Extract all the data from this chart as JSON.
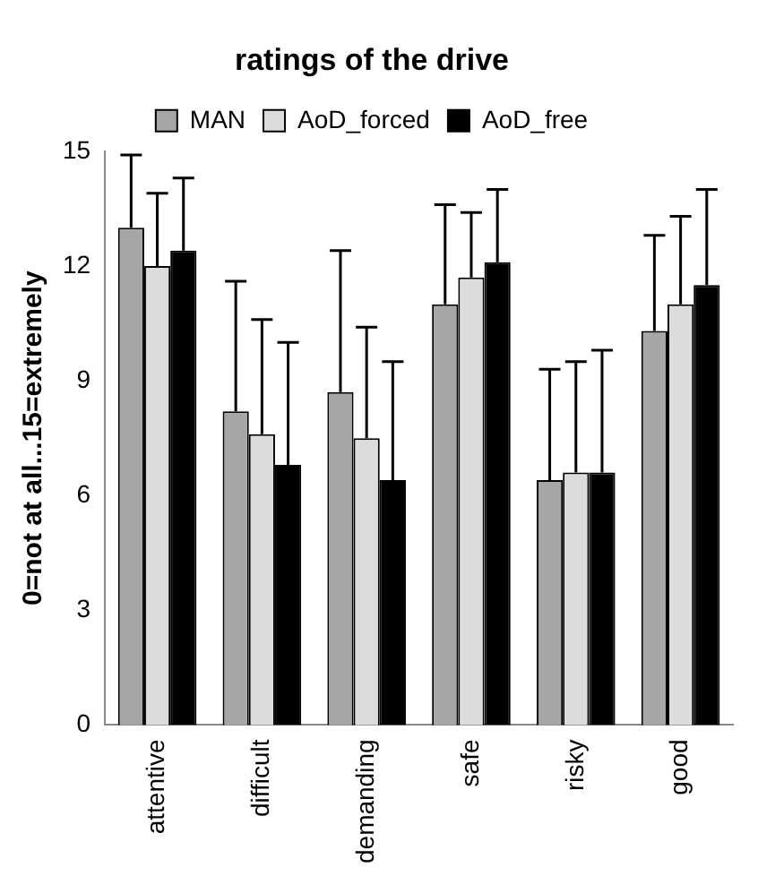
{
  "chart_data": {
    "type": "bar",
    "title": "ratings of the drive",
    "ylabel": "0=not at all...15=extremely",
    "categories": [
      "attentive",
      "difficult",
      "demanding",
      "safe",
      "risky",
      "good"
    ],
    "series": [
      {
        "name": "MAN",
        "color": "#a6a6a6",
        "values": [
          13.0,
          8.2,
          8.7,
          11.0,
          6.4,
          10.3
        ],
        "errors": [
          [
            13.0,
            14.9
          ],
          [
            8.2,
            11.6
          ],
          [
            8.7,
            12.4
          ],
          [
            11.0,
            13.6
          ],
          [
            6.4,
            9.3
          ],
          [
            10.3,
            12.8
          ]
        ]
      },
      {
        "name": "AoD_forced",
        "color": "#dcdcdc",
        "values": [
          12.0,
          7.6,
          7.5,
          11.7,
          6.6,
          11.0
        ],
        "errors": [
          [
            12.0,
            13.9
          ],
          [
            7.6,
            10.6
          ],
          [
            7.5,
            10.4
          ],
          [
            11.7,
            13.4
          ],
          [
            6.6,
            9.5
          ],
          [
            11.0,
            13.3
          ]
        ]
      },
      {
        "name": "AoD_free",
        "color": "#000000",
        "values": [
          12.4,
          6.8,
          6.4,
          12.1,
          6.6,
          11.5
        ],
        "errors": [
          [
            12.4,
            14.3
          ],
          [
            6.8,
            10.0
          ],
          [
            6.4,
            9.5
          ],
          [
            12.1,
            14.0
          ],
          [
            6.6,
            9.8
          ],
          [
            11.5,
            14.0
          ]
        ]
      }
    ],
    "ylim": [
      0,
      15
    ],
    "yticks": [
      0,
      3,
      6,
      9,
      12,
      15
    ],
    "grid": false,
    "legend": "top"
  }
}
